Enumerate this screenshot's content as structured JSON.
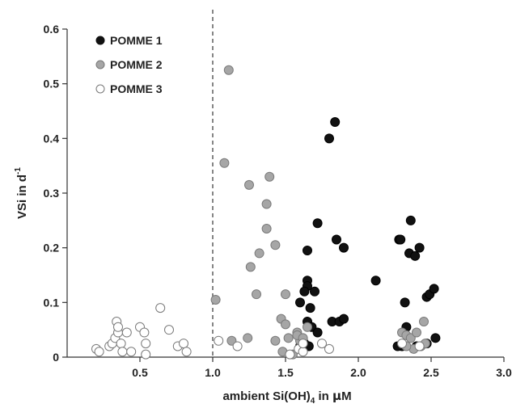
{
  "chart_data": {
    "type": "scatter",
    "xlabel_parts": [
      "ambient Si(OH)",
      "4",
      " in ",
      "µ",
      "M"
    ],
    "ylabel_parts": [
      "VSi in d",
      "-1"
    ],
    "xlim": [
      0,
      3.0
    ],
    "ylim": [
      0,
      0.6
    ],
    "x_ticks": [
      "0.5",
      "1.0",
      "1.5",
      "2.0",
      "2.5",
      "3.0"
    ],
    "y_ticks": [
      "0",
      "0.1",
      "0.2",
      "0.3",
      "0.4",
      "0.5",
      "0.6"
    ],
    "reference_line_x": 1.0,
    "legend_position": "top-left",
    "grid": false,
    "series": [
      {
        "name": "POMME 1",
        "fill": "#111111",
        "points": [
          [
            1.6,
            0.02
          ],
          [
            1.62,
            0.03
          ],
          [
            1.6,
            0.1
          ],
          [
            1.65,
            0.14
          ],
          [
            1.65,
            0.13
          ],
          [
            1.63,
            0.12
          ],
          [
            1.65,
            0.065
          ],
          [
            1.67,
            0.09
          ],
          [
            1.68,
            0.055
          ],
          [
            1.7,
            0.12
          ],
          [
            1.72,
            0.245
          ],
          [
            1.65,
            0.195
          ],
          [
            1.8,
            0.4
          ],
          [
            1.84,
            0.43
          ],
          [
            1.85,
            0.215
          ],
          [
            1.9,
            0.2
          ],
          [
            1.82,
            0.065
          ],
          [
            1.87,
            0.065
          ],
          [
            1.9,
            0.07
          ],
          [
            1.63,
            0.025
          ],
          [
            1.66,
            0.02
          ],
          [
            1.72,
            0.045
          ],
          [
            2.12,
            0.14
          ],
          [
            2.28,
            0.215
          ],
          [
            2.29,
            0.215
          ],
          [
            2.35,
            0.19
          ],
          [
            2.36,
            0.25
          ],
          [
            2.39,
            0.185
          ],
          [
            2.42,
            0.2
          ],
          [
            2.32,
            0.1
          ],
          [
            2.33,
            0.055
          ],
          [
            2.3,
            0.02
          ],
          [
            2.27,
            0.02
          ],
          [
            2.4,
            0.02
          ],
          [
            2.47,
            0.11
          ],
          [
            2.49,
            0.115
          ],
          [
            2.52,
            0.125
          ],
          [
            2.47,
            0.025
          ],
          [
            2.53,
            0.035
          ]
        ]
      },
      {
        "name": "POMME 2",
        "fill": "#a6a6a6",
        "points": [
          [
            1.11,
            0.525
          ],
          [
            1.08,
            0.355
          ],
          [
            1.02,
            0.105
          ],
          [
            1.25,
            0.315
          ],
          [
            1.39,
            0.33
          ],
          [
            1.37,
            0.28
          ],
          [
            1.37,
            0.235
          ],
          [
            1.32,
            0.19
          ],
          [
            1.26,
            0.165
          ],
          [
            1.43,
            0.205
          ],
          [
            1.3,
            0.115
          ],
          [
            1.5,
            0.115
          ],
          [
            1.47,
            0.07
          ],
          [
            1.52,
            0.035
          ],
          [
            1.5,
            0.06
          ],
          [
            1.58,
            0.045
          ],
          [
            1.6,
            0.03
          ],
          [
            1.24,
            0.035
          ],
          [
            1.13,
            0.03
          ],
          [
            1.43,
            0.03
          ],
          [
            1.48,
            0.01
          ],
          [
            1.55,
            0.005
          ],
          [
            1.58,
            0.04
          ],
          [
            1.62,
            0.035
          ],
          [
            1.65,
            0.055
          ],
          [
            2.3,
            0.045
          ],
          [
            2.33,
            0.04
          ],
          [
            2.36,
            0.035
          ],
          [
            2.4,
            0.045
          ],
          [
            2.45,
            0.065
          ],
          [
            2.43,
            0.02
          ],
          [
            2.38,
            0.015
          ],
          [
            2.33,
            0.02
          ],
          [
            2.46,
            0.025
          ]
        ]
      },
      {
        "name": "POMME 3",
        "fill": "#ffffff",
        "points": [
          [
            0.2,
            0.015
          ],
          [
            0.22,
            0.01
          ],
          [
            0.29,
            0.02
          ],
          [
            0.31,
            0.025
          ],
          [
            0.33,
            0.035
          ],
          [
            0.34,
            0.065
          ],
          [
            0.35,
            0.045
          ],
          [
            0.35,
            0.055
          ],
          [
            0.37,
            0.025
          ],
          [
            0.38,
            0.01
          ],
          [
            0.41,
            0.045
          ],
          [
            0.44,
            0.01
          ],
          [
            0.5,
            0.055
          ],
          [
            0.53,
            0.045
          ],
          [
            0.54,
            0.025
          ],
          [
            0.54,
            0.005
          ],
          [
            0.64,
            0.09
          ],
          [
            0.7,
            0.05
          ],
          [
            0.76,
            0.02
          ],
          [
            0.8,
            0.025
          ],
          [
            0.82,
            0.01
          ],
          [
            1.04,
            0.03
          ],
          [
            1.17,
            0.02
          ],
          [
            1.53,
            0.005
          ],
          [
            1.59,
            0.015
          ],
          [
            1.62,
            0.01
          ],
          [
            1.62,
            0.025
          ],
          [
            1.75,
            0.025
          ],
          [
            1.8,
            0.015
          ],
          [
            2.3,
            0.025
          ],
          [
            2.42,
            0.02
          ]
        ]
      }
    ]
  }
}
